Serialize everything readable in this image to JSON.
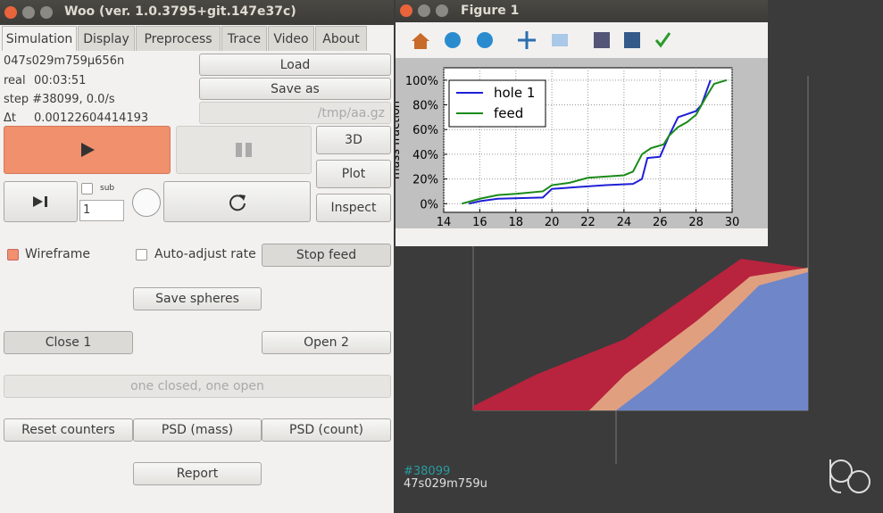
{
  "woo_window": {
    "title": "Woo (ver. 1.0.3795+git.147e37c)",
    "tabs": [
      "Simulation",
      "Display",
      "Preprocess",
      "Trace",
      "Video",
      "About"
    ],
    "info": {
      "time": "047s029m759μ656n",
      "real_label": "real",
      "real": "00:03:51",
      "step": "step #38099, 0.0/s",
      "dt_label": "Δt",
      "dt": "0.00122604414193"
    },
    "buttons": {
      "load": "Load",
      "save_as": "Save as",
      "path": "/tmp/aa.gz",
      "view_3d": "3D",
      "plot": "Plot",
      "inspect": "Inspect",
      "sub": "sub",
      "substep_value": "1",
      "wireframe": "Wireframe",
      "auto_adjust": "Auto-adjust rate",
      "stop_feed": "Stop feed",
      "save_spheres": "Save spheres",
      "close_1": "Close 1",
      "open_2": "Open 2",
      "status": "one closed, one open",
      "reset_counters": "Reset counters",
      "psd_mass": "PSD (mass)",
      "psd_count": "PSD (count)",
      "report": "Report"
    }
  },
  "figure_window": {
    "title": "Figure 1"
  },
  "chart_data": {
    "type": "line",
    "ylabel": "mass fraction",
    "series": [
      {
        "name": "hole 1",
        "color": "#1f1fd8",
        "x": [
          15.4,
          16,
          17,
          19.5,
          20,
          22,
          23,
          24.5,
          25,
          25.3,
          26,
          26.5,
          27,
          28,
          28.3,
          28.8
        ],
        "values": [
          0,
          2,
          4,
          5,
          12,
          14,
          15,
          16,
          20,
          37,
          38,
          55,
          70,
          75,
          80,
          100
        ]
      },
      {
        "name": "feed",
        "color": "#1a8a1a",
        "x": [
          15,
          16,
          17,
          18,
          19.5,
          20,
          21,
          22,
          24,
          24.5,
          25,
          25.5,
          26.2,
          26.5,
          27,
          27.5,
          28,
          28.5,
          29,
          29.7
        ],
        "values": [
          0,
          4,
          7,
          8,
          10,
          15,
          17,
          21,
          23,
          26,
          40,
          45,
          48,
          55,
          62,
          66,
          72,
          85,
          97,
          100
        ]
      }
    ],
    "xlim": [
      14,
      30
    ],
    "xticks": [
      14,
      16,
      18,
      20,
      22,
      24,
      26,
      28,
      30
    ],
    "ylim": [
      -7,
      110
    ],
    "yticks": [
      {
        "value": 0,
        "label": "0%"
      },
      {
        "value": 20,
        "label": "20%"
      },
      {
        "value": 40,
        "label": "40%"
      },
      {
        "value": 60,
        "label": "60%"
      },
      {
        "value": 80,
        "label": "80%"
      },
      {
        "value": 100,
        "label": "100%"
      }
    ],
    "grid": true,
    "legend": "upper left"
  },
  "view3d": {
    "step": "#38099",
    "time": "47s029m759u"
  }
}
